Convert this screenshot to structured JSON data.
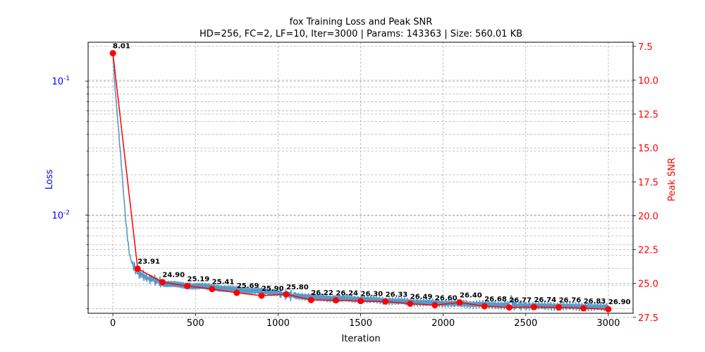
{
  "chart_data": {
    "type": "line",
    "title": "fox Training Loss and Peak SNR",
    "subtitle": "HD=256, FC=2, LF=10, Iter=3000 | Params: 143363 | Size: 560.01 KB",
    "xlabel": "Iteration",
    "ylabel_left": "Loss",
    "ylabel_right": "Peak SNR",
    "xlim": [
      -150,
      3150
    ],
    "ylim_left": [
      0.00185,
      0.195
    ],
    "yscale_left": "log",
    "ylim_right": [
      27.2,
      7.2
    ],
    "y_right_inverted": true,
    "grid": true,
    "x_ticks": [
      "0",
      "500",
      "1000",
      "1500",
      "2000",
      "2500",
      "3000"
    ],
    "y_left_ticks": [
      "10^-1",
      "10^-2"
    ],
    "y_right_ticks": [
      "7.5",
      "10.0",
      "12.5",
      "15.0",
      "17.5",
      "20.0",
      "22.5",
      "25.0",
      "27.5"
    ],
    "colors": {
      "loss": "#1f77b4",
      "psnr": "#ff0000",
      "left_axis_text": "#0000ff",
      "right_axis_text": "#ff0000"
    },
    "loss_series": {
      "name": "Loss",
      "x": [
        0,
        5,
        10,
        20,
        30,
        40,
        50,
        60,
        70,
        80,
        90,
        100,
        110,
        120,
        130,
        140,
        150,
        175,
        200,
        250,
        300,
        400,
        500,
        600,
        700,
        800,
        900,
        1000,
        1050,
        1100,
        1200,
        1300,
        1400,
        1500,
        1600,
        1700,
        1800,
        1900,
        2000,
        2100,
        2200,
        2300,
        2400,
        2410,
        2420,
        2430,
        2450,
        2500,
        2600,
        2700,
        2800,
        2900,
        3000
      ],
      "y": [
        0.16,
        0.13,
        0.1,
        0.07,
        0.05,
        0.035,
        0.025,
        0.017,
        0.012,
        0.0085,
        0.0065,
        0.0052,
        0.0046,
        0.0043,
        0.0041,
        0.0039,
        0.0037,
        0.0036,
        0.0034,
        0.0033,
        0.0031,
        0.003,
        0.00295,
        0.0029,
        0.0028,
        0.00275,
        0.0027,
        0.00265,
        0.00255,
        0.0025,
        0.00245,
        0.0024,
        0.00238,
        0.00236,
        0.00232,
        0.00228,
        0.00225,
        0.00222,
        0.0022,
        0.00218,
        0.00216,
        0.00214,
        0.00213,
        0.0025,
        0.0022,
        0.00213,
        0.00212,
        0.00211,
        0.0021,
        0.00209,
        0.00208,
        0.00207,
        0.00206
      ]
    },
    "psnr_series": {
      "name": "Peak SNR",
      "x": [
        0,
        150,
        300,
        450,
        600,
        750,
        900,
        1050,
        1200,
        1350,
        1500,
        1650,
        1800,
        1950,
        2100,
        2250,
        2400,
        2550,
        2700,
        2850,
        3000
      ],
      "y": [
        8.01,
        23.91,
        24.9,
        25.19,
        25.41,
        25.69,
        25.9,
        25.8,
        26.22,
        26.24,
        26.3,
        26.33,
        26.49,
        26.6,
        26.4,
        26.68,
        26.77,
        26.74,
        26.76,
        26.83,
        26.9
      ],
      "labels": [
        "8.01",
        "23.91",
        "24.90",
        "25.19",
        "25.41",
        "25.69",
        "25.90",
        "25.80",
        "26.22",
        "26.24",
        "26.30",
        "26.33",
        "26.49",
        "26.60",
        "26.40",
        "26.68",
        "26.77",
        "26.74",
        "26.76",
        "26.83",
        "26.90"
      ]
    }
  }
}
